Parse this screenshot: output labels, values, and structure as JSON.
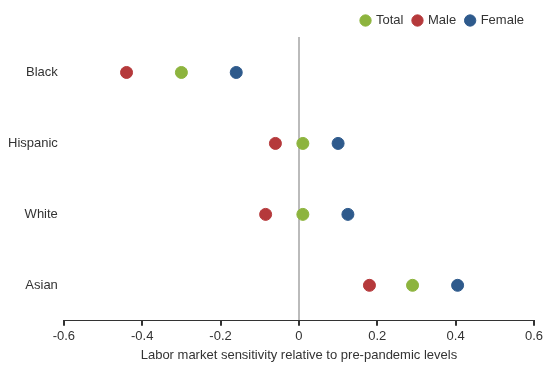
{
  "chart_data": {
    "type": "scatter",
    "x_label": "Labor market sensitivity relative to pre-pandemic levels",
    "categories": [
      "Black",
      "Hispanic",
      "White",
      "Asian"
    ],
    "series": [
      {
        "name": "Total",
        "color": "#8db43e",
        "values": [
          -0.3,
          0.01,
          0.01,
          0.29
        ]
      },
      {
        "name": "Male",
        "color": "#b5393b",
        "values": [
          -0.44,
          -0.06,
          -0.085,
          0.18
        ]
      },
      {
        "name": "Female",
        "color": "#2e5a8c",
        "values": [
          -0.16,
          0.1,
          0.125,
          0.405
        ]
      }
    ],
    "xlim": [
      -0.6,
      0.6
    ],
    "xticks": [
      -0.6,
      -0.4,
      -0.2,
      0,
      0.2,
      0.4,
      0.6
    ],
    "grid": false,
    "legend": "upper right",
    "marker": "circle"
  }
}
